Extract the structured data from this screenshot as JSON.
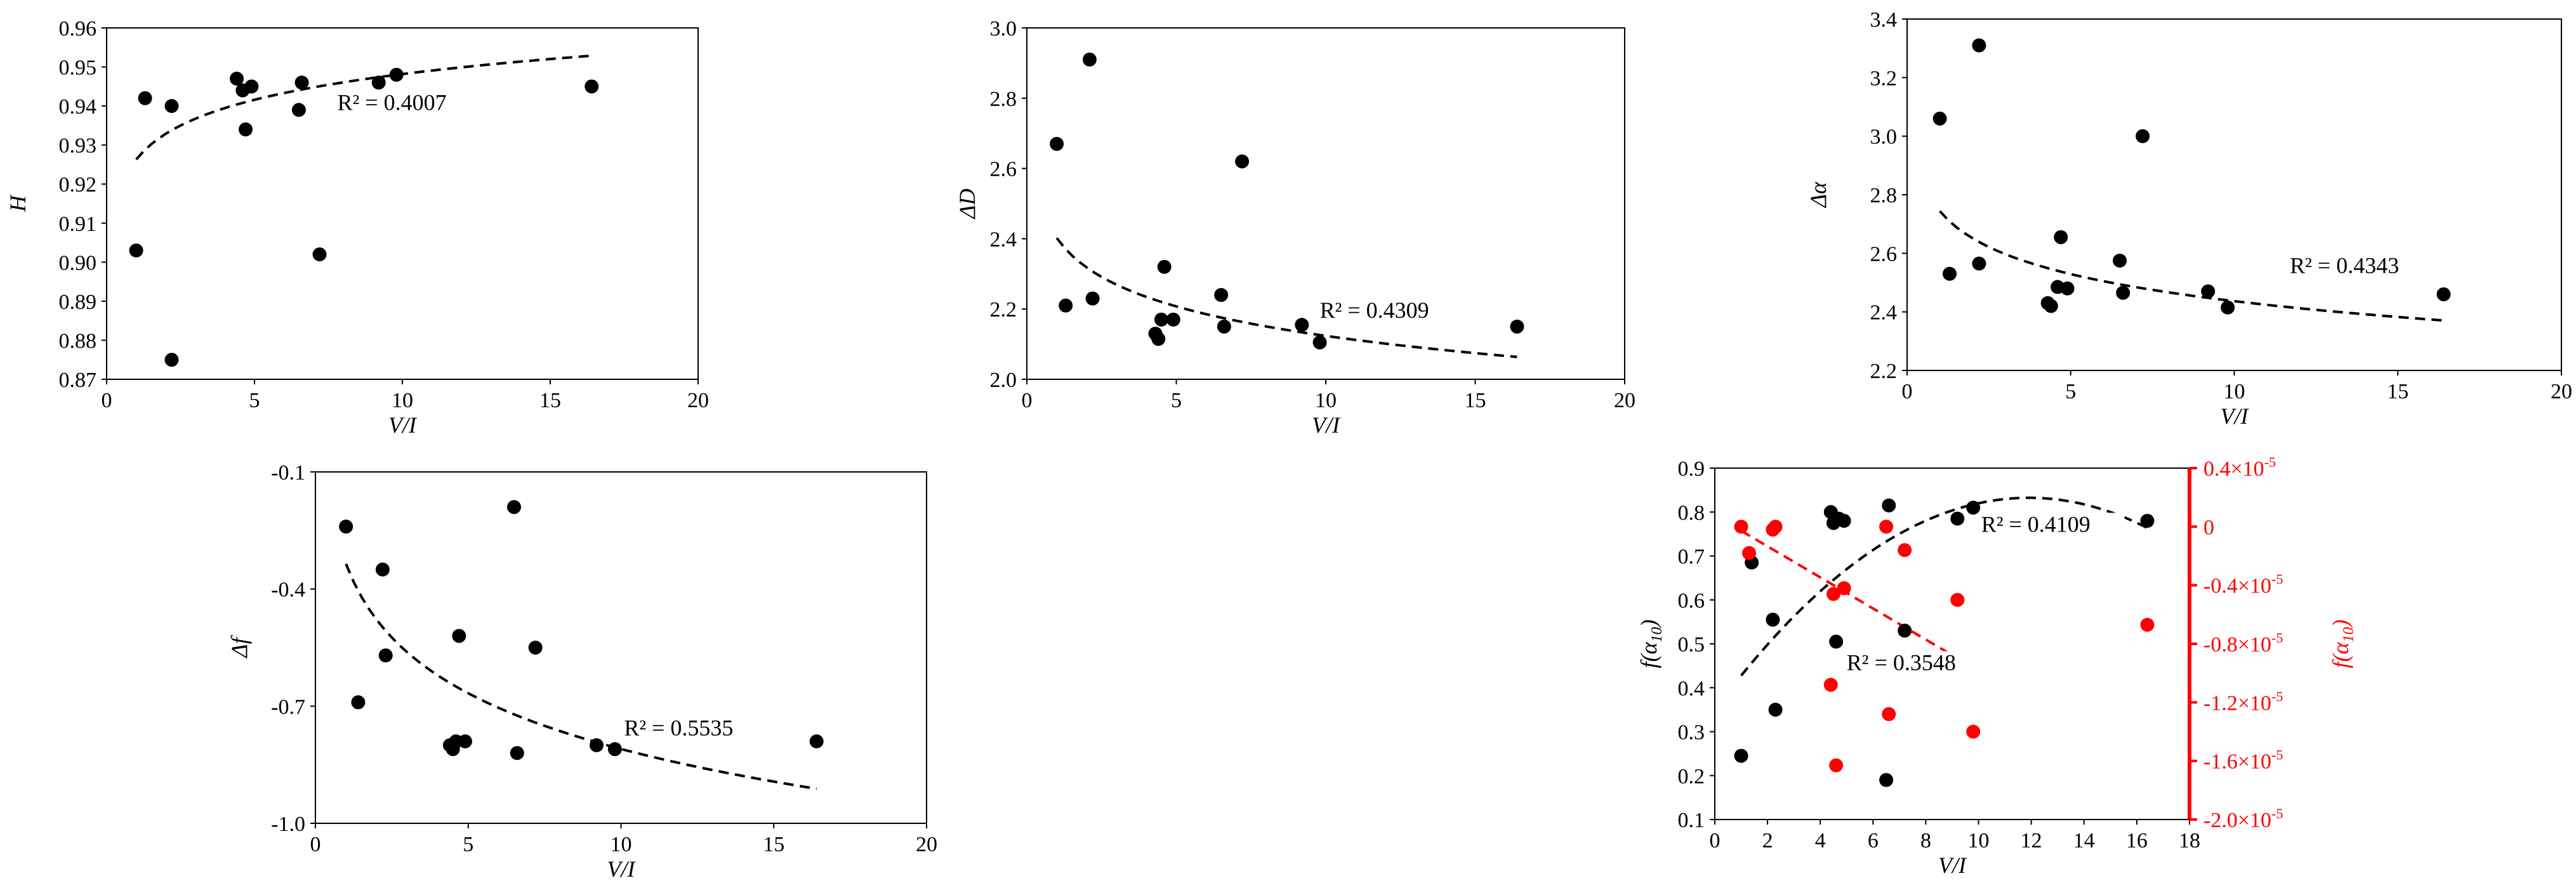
{
  "chart_data": [
    {
      "type": "scatter",
      "xlabel": "V/I",
      "ylabel": "H",
      "xlim": [
        0,
        20
      ],
      "ylim": [
        0.87,
        0.96
      ],
      "xticks": [
        0,
        5,
        10,
        15,
        20
      ],
      "yticks": [
        0.87,
        0.88,
        0.89,
        0.9,
        0.91,
        0.92,
        0.93,
        0.94,
        0.95,
        0.96
      ],
      "x_decimals": 0,
      "y_decimals": 2,
      "series": [
        {
          "color": "#000000",
          "x": [
            1.0,
            1.3,
            2.2,
            2.2,
            4.4,
            4.6,
            4.7,
            4.9,
            6.5,
            6.6,
            7.2,
            9.2,
            9.8,
            16.4
          ],
          "y": [
            0.903,
            0.942,
            0.94,
            0.875,
            0.947,
            0.944,
            0.934,
            0.945,
            0.939,
            0.946,
            0.902,
            0.946,
            0.948,
            0.945
          ],
          "fit": {
            "model": "log",
            "a": 0.9263,
            "b": 0.0095,
            "x_range": [
              1,
              16.4
            ],
            "color": "#000000"
          }
        }
      ],
      "annotations": [
        {
          "text": "R² = 0.4007",
          "x": 7.8,
          "y": 0.939
        }
      ],
      "grid": false
    },
    {
      "type": "scatter",
      "xlabel": "V/I",
      "ylabel": "ΔD",
      "xlim": [
        0,
        20
      ],
      "ylim": [
        2.0,
        3.0
      ],
      "xticks": [
        0,
        5,
        10,
        15,
        20
      ],
      "yticks": [
        2.0,
        2.2,
        2.4,
        2.6,
        2.8,
        3.0
      ],
      "x_decimals": 0,
      "y_decimals": 1,
      "series": [
        {
          "color": "#000000",
          "x": [
            1.0,
            1.3,
            2.1,
            2.2,
            4.3,
            4.4,
            4.5,
            4.6,
            4.9,
            6.5,
            6.6,
            7.2,
            9.2,
            9.8,
            16.4
          ],
          "y": [
            2.67,
            2.21,
            2.91,
            2.23,
            2.13,
            2.115,
            2.17,
            2.32,
            2.17,
            2.24,
            2.15,
            2.62,
            2.155,
            2.105,
            2.15
          ],
          "fit": {
            "model": "log",
            "a": 2.4022,
            "b": -0.121,
            "x_range": [
              1,
              16.4
            ],
            "color": "#000000"
          }
        }
      ],
      "annotations": [
        {
          "text": "R² = 0.4309",
          "x": 9.8,
          "y": 2.175
        }
      ],
      "grid": false
    },
    {
      "type": "scatter",
      "xlabel": "V/I",
      "ylabel": "Δα",
      "xlim": [
        0,
        20
      ],
      "ylim": [
        2.2,
        3.4
      ],
      "xticks": [
        0,
        5,
        10,
        15,
        20
      ],
      "yticks": [
        2.2,
        2.4,
        2.6,
        2.8,
        3.0,
        3.2,
        3.4
      ],
      "x_decimals": 0,
      "y_decimals": 1,
      "series": [
        {
          "color": "#000000",
          "x": [
            1.0,
            1.3,
            2.2,
            2.2,
            4.3,
            4.4,
            4.6,
            4.7,
            4.9,
            6.5,
            6.6,
            7.2,
            9.2,
            9.8,
            16.4
          ],
          "y": [
            3.06,
            2.53,
            3.31,
            2.565,
            2.43,
            2.42,
            2.485,
            2.655,
            2.48,
            2.575,
            2.465,
            3.0,
            2.47,
            2.415,
            2.46
          ],
          "fit": {
            "model": "log",
            "a": 2.7438,
            "b": -0.1334,
            "x_range": [
              1,
              16.4
            ],
            "color": "#000000"
          }
        }
      ],
      "annotations": [
        {
          "text": "R² = 0.4343",
          "x": 11.7,
          "y": 2.533
        }
      ],
      "grid": false
    },
    {
      "type": "scatter",
      "xlabel": "V/I",
      "ylabel": "Δf",
      "xlim": [
        0,
        20
      ],
      "ylim": [
        -1.0,
        -0.1
      ],
      "xticks": [
        0,
        5,
        10,
        15,
        20
      ],
      "yticks": [
        -1.0,
        -0.7,
        -0.4,
        -0.1
      ],
      "x_decimals": 0,
      "y_decimals": 1,
      "series": [
        {
          "color": "#000000",
          "x": [
            1.0,
            1.4,
            2.2,
            2.3,
            4.4,
            4.5,
            4.6,
            4.7,
            4.9,
            6.5,
            6.6,
            7.2,
            9.2,
            9.8,
            16.4
          ],
          "y": [
            -0.24,
            -0.69,
            -0.35,
            -0.57,
            -0.8,
            -0.81,
            -0.79,
            -0.52,
            -0.79,
            -0.19,
            -0.82,
            -0.55,
            -0.8,
            -0.81,
            -0.79
          ],
          "fit": {
            "model": "log",
            "a": -0.3355,
            "b": -0.2059,
            "x_range": [
              1,
              16.4
            ],
            "color": "#000000"
          }
        }
      ],
      "annotations": [
        {
          "text": "R² = 0.5535",
          "x": 10.1,
          "y": -0.775
        }
      ],
      "grid": false
    },
    {
      "type": "scatter",
      "xlabel": "V/I",
      "ylabel": "f(α10)",
      "y2label": "f(α10)",
      "xlim": [
        0,
        18
      ],
      "ylim": [
        0.1,
        0.9
      ],
      "y2lim": [
        -2.0,
        0.4
      ],
      "xticks": [
        0,
        2,
        4,
        6,
        8,
        10,
        12,
        14,
        16,
        18
      ],
      "yticks": [
        0.1,
        0.2,
        0.3,
        0.4,
        0.5,
        0.6,
        0.7,
        0.8,
        0.9
      ],
      "y2ticks": [
        -2.0,
        -1.6,
        -1.2,
        -0.8,
        -0.4,
        0,
        0.4
      ],
      "y2_tick_labels": [
        "-2.0×10",
        "-1.6×10",
        "-1.2×10",
        "-0.8×10",
        "-0.4×10",
        "0",
        "0.4×10"
      ],
      "y2_tick_exponent": "-5",
      "x_decimals": 0,
      "y_decimals": 1,
      "series": [
        {
          "color": "#000000",
          "axis": "left",
          "x": [
            1.0,
            1.4,
            2.2,
            2.3,
            4.4,
            4.5,
            4.6,
            4.7,
            4.9,
            6.5,
            6.6,
            7.2,
            9.2,
            9.8,
            16.4
          ],
          "y": [
            0.245,
            0.685,
            0.555,
            0.35,
            0.8,
            0.775,
            0.505,
            0.785,
            0.78,
            0.19,
            0.815,
            0.53,
            0.785,
            0.81,
            0.78
          ],
          "fit": {
            "model": "poly2",
            "a": 0.35,
            "b": 0.081,
            "c": -0.0034,
            "x_range": [
              1,
              16.4
            ],
            "color": "#000000"
          }
        },
        {
          "color": "#ff0000",
          "axis": "right",
          "x": [
            1.0,
            1.3,
            2.2,
            2.3,
            4.4,
            4.5,
            4.6,
            4.9,
            6.5,
            6.6,
            7.2,
            9.2,
            9.8,
            16.4
          ],
          "y": [
            0.0,
            -0.18,
            -0.02,
            0.0,
            -1.08,
            -0.46,
            -1.63,
            -0.42,
            0.0,
            -1.28,
            -0.16,
            -0.5,
            -1.4,
            -0.67
          ],
          "fit": {
            "model": "linear",
            "a": 0.078,
            "b": -0.1061,
            "x_range": [
              1,
              9.8
            ],
            "color": "#ff0000"
          }
        }
      ],
      "annotations": [
        {
          "text": "R² = 0.4109",
          "x": 10.1,
          "y": 0.755
        },
        {
          "text": "R² = 0.3548",
          "x": 5.0,
          "y": 0.44
        }
      ],
      "grid": false
    }
  ]
}
